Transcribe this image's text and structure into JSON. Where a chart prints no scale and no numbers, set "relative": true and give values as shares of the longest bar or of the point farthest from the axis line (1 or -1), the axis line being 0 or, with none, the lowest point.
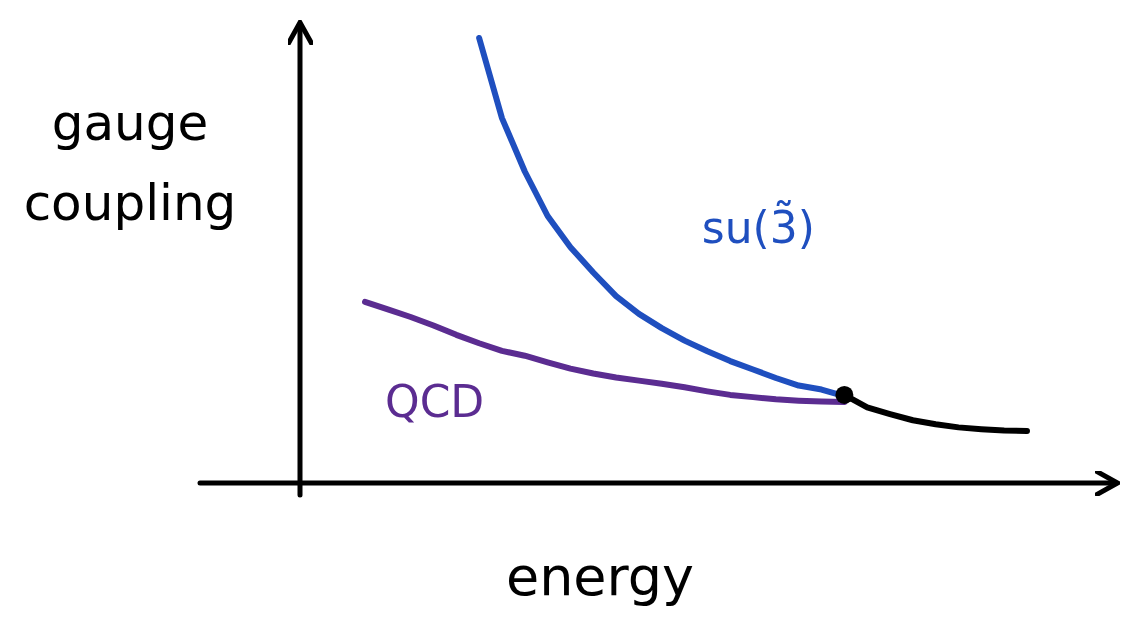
{
  "chart_data": {
    "type": "line",
    "relative": true,
    "xlabel": "energy",
    "ylabel": "gauge coupling",
    "categories": [
      null,
      null,
      null,
      null,
      null,
      null,
      null,
      null,
      null,
      null,
      null,
      null,
      null,
      null,
      null,
      null,
      null,
      null,
      null,
      null,
      null,
      null,
      null,
      null,
      null,
      null,
      null,
      null,
      null,
      null
    ],
    "series": [
      {
        "name": "su(3̃)",
        "color": "#1f4fbf",
        "values": [
          null,
          null,
          null,
          null,
          null,
          1.0,
          0.82,
          0.7,
          0.6,
          0.53,
          0.473,
          0.42,
          0.38,
          0.348,
          0.32,
          0.296,
          0.274,
          0.255,
          0.236,
          0.219,
          0.21,
          0.195,
          null,
          null,
          null,
          null,
          null,
          null,
          null,
          null
        ]
      },
      {
        "name": "QCD",
        "color": "#5b2c91",
        "values": [
          0.407,
          0.39,
          0.373,
          0.354,
          0.333,
          0.314,
          0.297,
          0.286,
          0.271,
          0.257,
          0.246,
          0.237,
          0.23,
          0.223,
          0.215,
          0.206,
          0.198,
          0.193,
          0.188,
          0.185,
          0.183,
          0.182,
          null,
          null,
          null,
          null,
          null,
          null,
          null,
          null
        ]
      },
      {
        "color": "#000000",
        "values": [
          null,
          null,
          null,
          null,
          null,
          null,
          null,
          null,
          null,
          null,
          null,
          null,
          null,
          null,
          null,
          null,
          null,
          null,
          null,
          null,
          null,
          0.198,
          0.17,
          0.155,
          0.141,
          0.132,
          0.125,
          0.121,
          0.118,
          0.117
        ]
      }
    ]
  }
}
